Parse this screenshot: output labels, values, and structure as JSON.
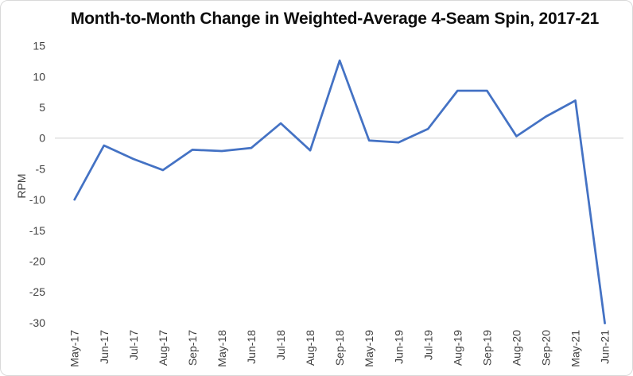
{
  "chart_data": {
    "type": "line",
    "title": "Month-to-Month Change in Weighted-Average 4-Seam Spin, 2017-21",
    "xlabel": "",
    "ylabel": "RPM",
    "categories": [
      "May-17",
      "Jun-17",
      "Jul-17",
      "Aug-17",
      "Sep-17",
      "May-18",
      "Jun-18",
      "Jul-18",
      "Aug-18",
      "Sep-18",
      "May-19",
      "Jun-19",
      "Jul-19",
      "Aug-19",
      "Sep-19",
      "Aug-20",
      "Sep-20",
      "May-21",
      "Jun-21"
    ],
    "values": [
      -10,
      -1.2,
      -3.4,
      -5.2,
      -1.9,
      -2.1,
      -1.6,
      2.4,
      -2.0,
      12.6,
      -0.4,
      -0.7,
      1.5,
      7.7,
      7.7,
      0.3,
      3.5,
      6.1,
      -30.1
    ],
    "y_ticks": [
      15,
      10,
      5,
      0,
      -5,
      -10,
      -15,
      -20,
      -25,
      -30
    ],
    "ylim": [
      -30,
      15
    ],
    "legend": "none",
    "grid": "zero-axis-line-only",
    "markers": "none",
    "colors": {
      "line": "#4472C4",
      "axis_line": "#D9D9D9",
      "tick_label": "#404040",
      "title": "#0d0d0d",
      "border": "#D9D9D9",
      "background": "#FFFFFF"
    }
  }
}
